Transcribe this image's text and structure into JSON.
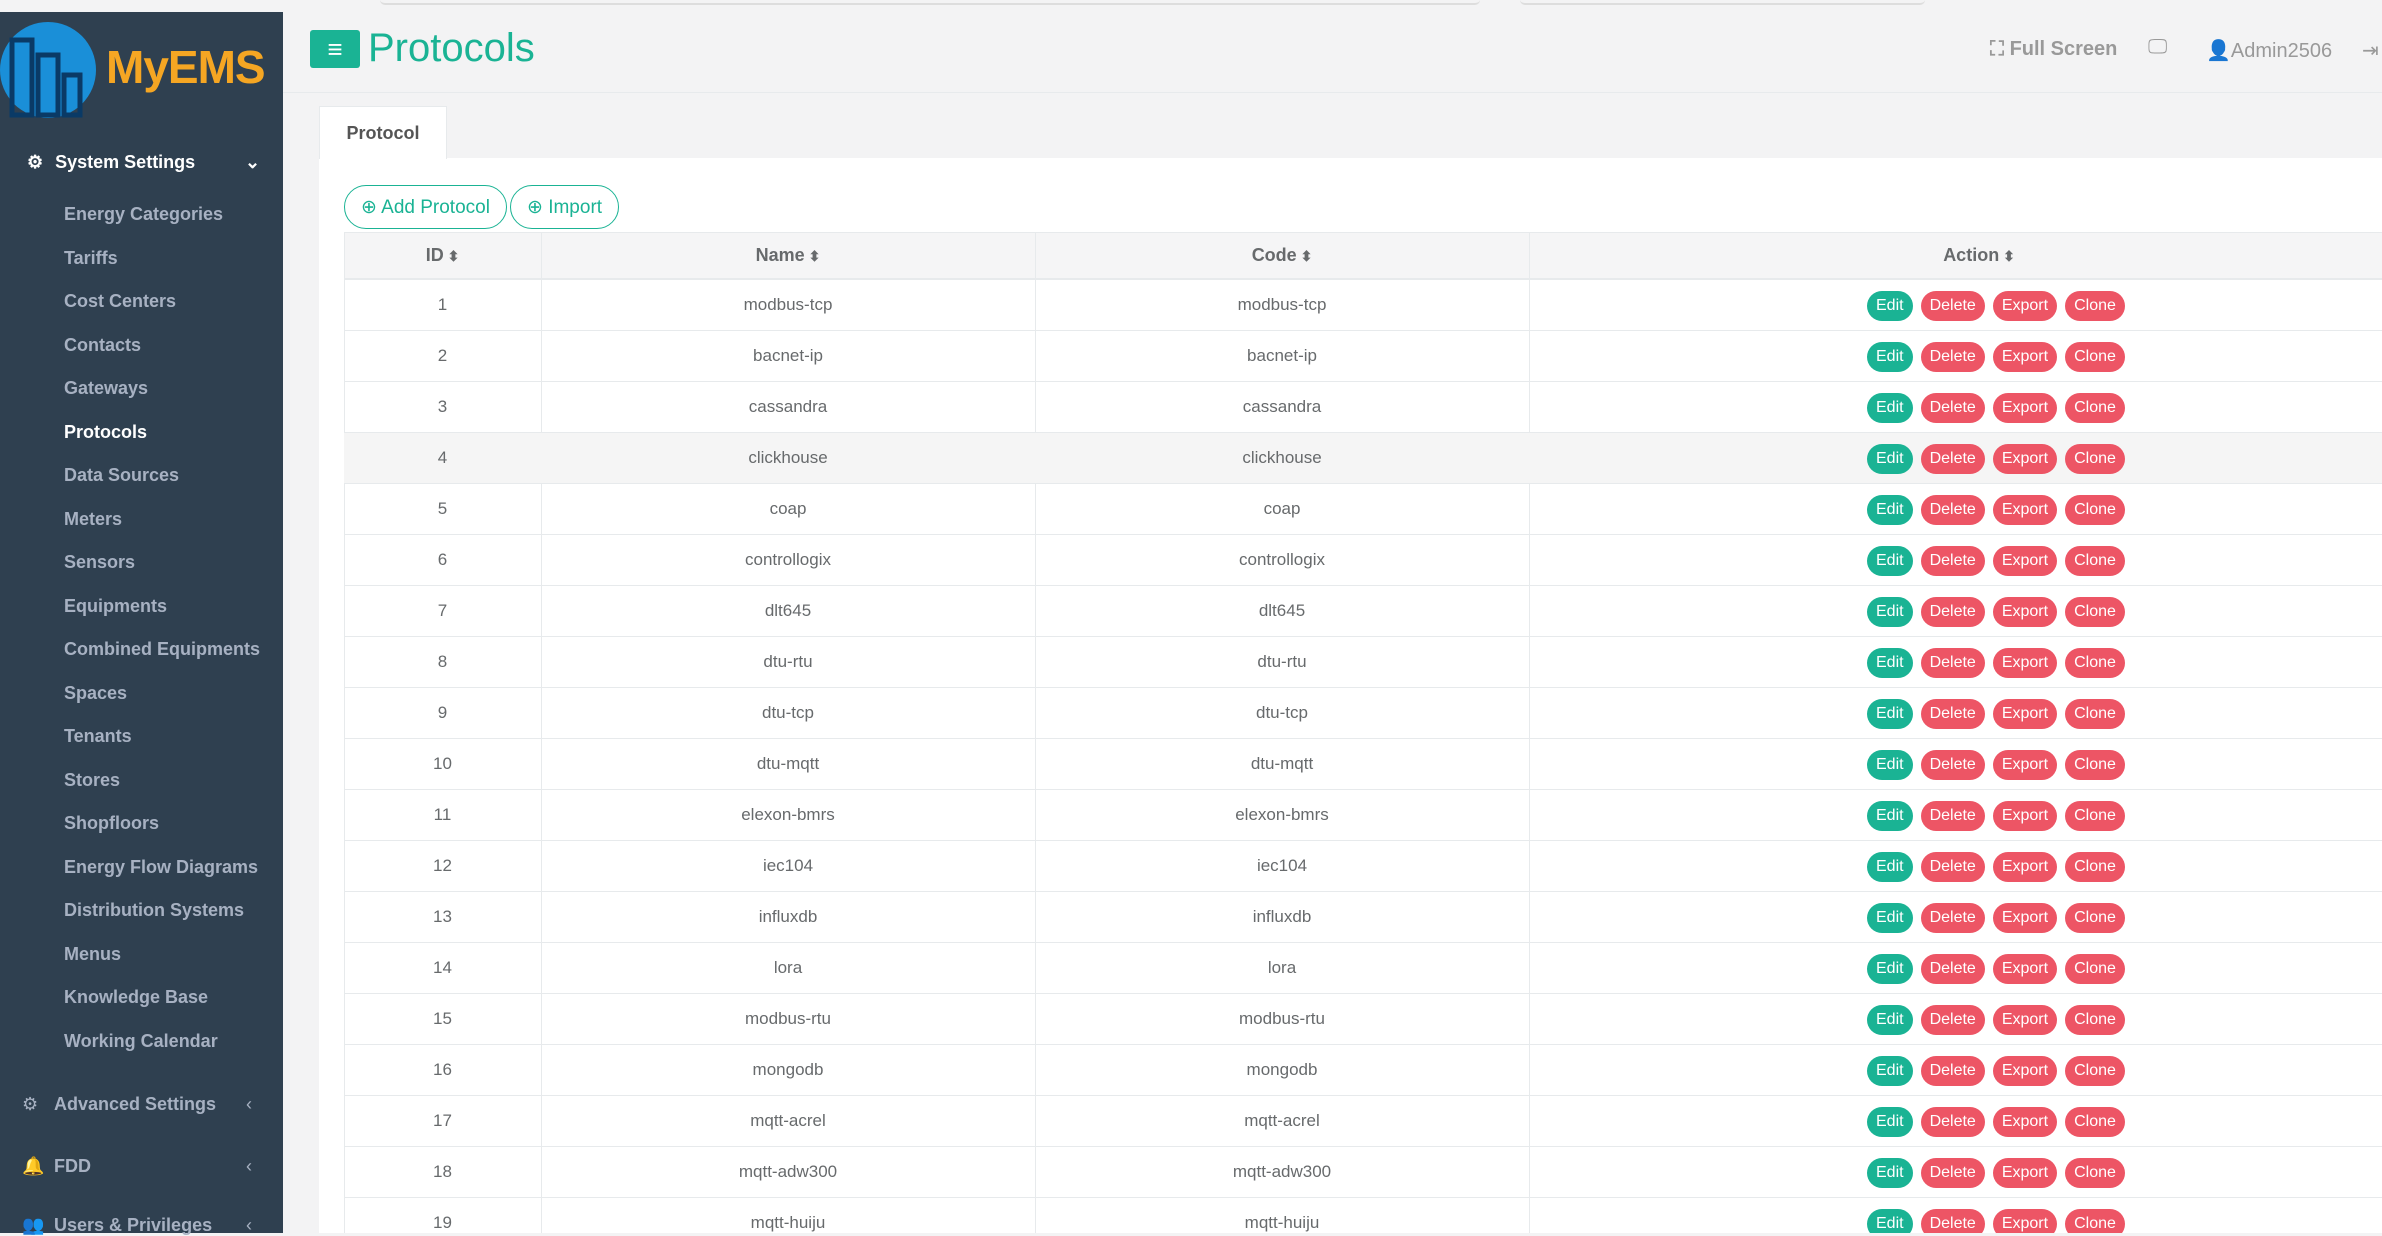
{
  "sidebar": {
    "brand": "MyEMS",
    "section": "System Settings",
    "items": [
      "Energy Categories",
      "Tariffs",
      "Cost Centers",
      "Contacts",
      "Gateways",
      "Protocols",
      "Data Sources",
      "Meters",
      "Sensors",
      "Equipments",
      "Combined Equipments",
      "Spaces",
      "Tenants",
      "Stores",
      "Shopfloors",
      "Energy Flow Diagrams",
      "Distribution Systems",
      "Menus",
      "Knowledge Base",
      "Working Calendar"
    ],
    "active": 5,
    "groups": [
      "Advanced Settings",
      "FDD",
      "Users & Privileges"
    ]
  },
  "header": {
    "title": "Protocols",
    "fullscreen": "Full Screen",
    "user": "Admin2506"
  },
  "tab": "Protocol",
  "toolbar": [
    "Add Protocol",
    "Import"
  ],
  "table": {
    "columns": [
      "ID",
      "Name",
      "Code",
      "Action"
    ],
    "actions": [
      "Edit",
      "Delete",
      "Export",
      "Clone"
    ],
    "rows": [
      [
        1,
        "modbus-tcp",
        "modbus-tcp"
      ],
      [
        2,
        "bacnet-ip",
        "bacnet-ip"
      ],
      [
        3,
        "cassandra",
        "cassandra"
      ],
      [
        4,
        "clickhouse",
        "clickhouse"
      ],
      [
        5,
        "coap",
        "coap"
      ],
      [
        6,
        "controllogix",
        "controllogix"
      ],
      [
        7,
        "dlt645",
        "dlt645"
      ],
      [
        8,
        "dtu-rtu",
        "dtu-rtu"
      ],
      [
        9,
        "dtu-tcp",
        "dtu-tcp"
      ],
      [
        10,
        "dtu-mqtt",
        "dtu-mqtt"
      ],
      [
        11,
        "elexon-bmrs",
        "elexon-bmrs"
      ],
      [
        12,
        "iec104",
        "iec104"
      ],
      [
        13,
        "influxdb",
        "influxdb"
      ],
      [
        14,
        "lora",
        "lora"
      ],
      [
        15,
        "modbus-rtu",
        "modbus-rtu"
      ],
      [
        16,
        "mongodb",
        "mongodb"
      ],
      [
        17,
        "mqtt-acrel",
        "mqtt-acrel"
      ],
      [
        18,
        "mqtt-adw300",
        "mqtt-adw300"
      ],
      [
        19,
        "mqtt-huiju",
        "mqtt-huiju"
      ]
    ]
  }
}
